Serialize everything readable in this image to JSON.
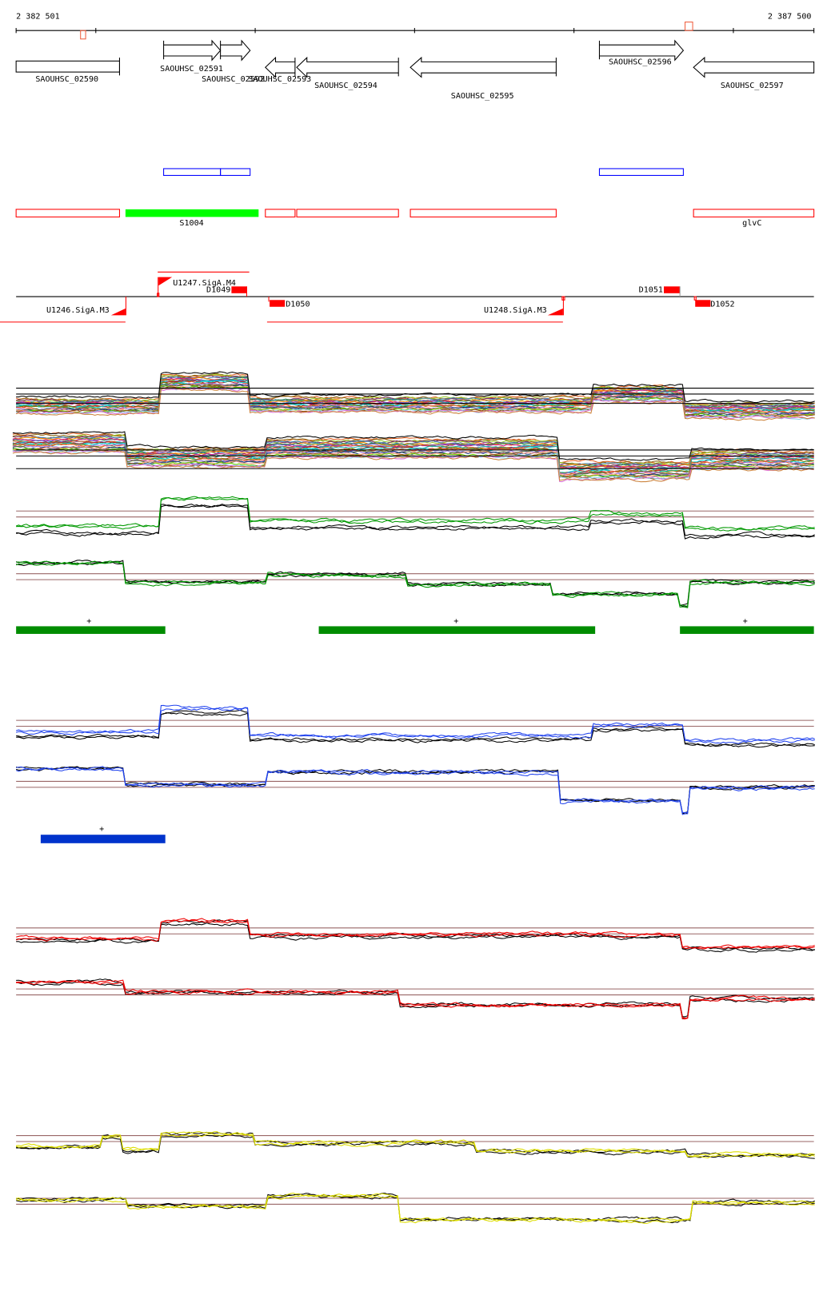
{
  "ruler": {
    "start_label": "2 382 501",
    "end_label": "2 387 500"
  },
  "genes": [
    {
      "label": "SAOUHSC_02590",
      "strand": "none"
    },
    {
      "label": "SAOUHSC_02591",
      "strand": "+"
    },
    {
      "label": "SAOUHSC_02592",
      "strand": "+"
    },
    {
      "label": "SAOUHSC_02593",
      "strand": "-"
    },
    {
      "label": "SAOUHSC_02594",
      "strand": "-"
    },
    {
      "label": "SAOUHSC_02595",
      "strand": "-"
    },
    {
      "label": "SAOUHSC_02596",
      "strand": "+"
    },
    {
      "label": "SAOUHSC_02597",
      "strand": "-"
    }
  ],
  "annotation_track": {
    "green_label": "S1004",
    "last_label": "glvC"
  },
  "regulatory": {
    "promoters": [
      "U1246.SigA.M3",
      "U1247.SigA.M4",
      "U1248.SigA.M3"
    ],
    "terminators": [
      "D1049",
      "D1050",
      "D1051",
      "D1052"
    ]
  },
  "segment_marks": {
    "green": [
      "+",
      "+",
      "+"
    ],
    "blue": [
      "+"
    ]
  },
  "colors": {
    "gene_outline": "#000000",
    "blue_box": "#0000ff",
    "red_box": "#ff0000",
    "green_fill": "#00ff00",
    "segment_green": "#008c00",
    "segment_blue": "#0033cc",
    "threshold_line": "#996666",
    "trace_green": "#009900",
    "trace_blue": "#2244ee",
    "trace_red": "#ee0000",
    "trace_yellow": "#dddd00"
  }
}
